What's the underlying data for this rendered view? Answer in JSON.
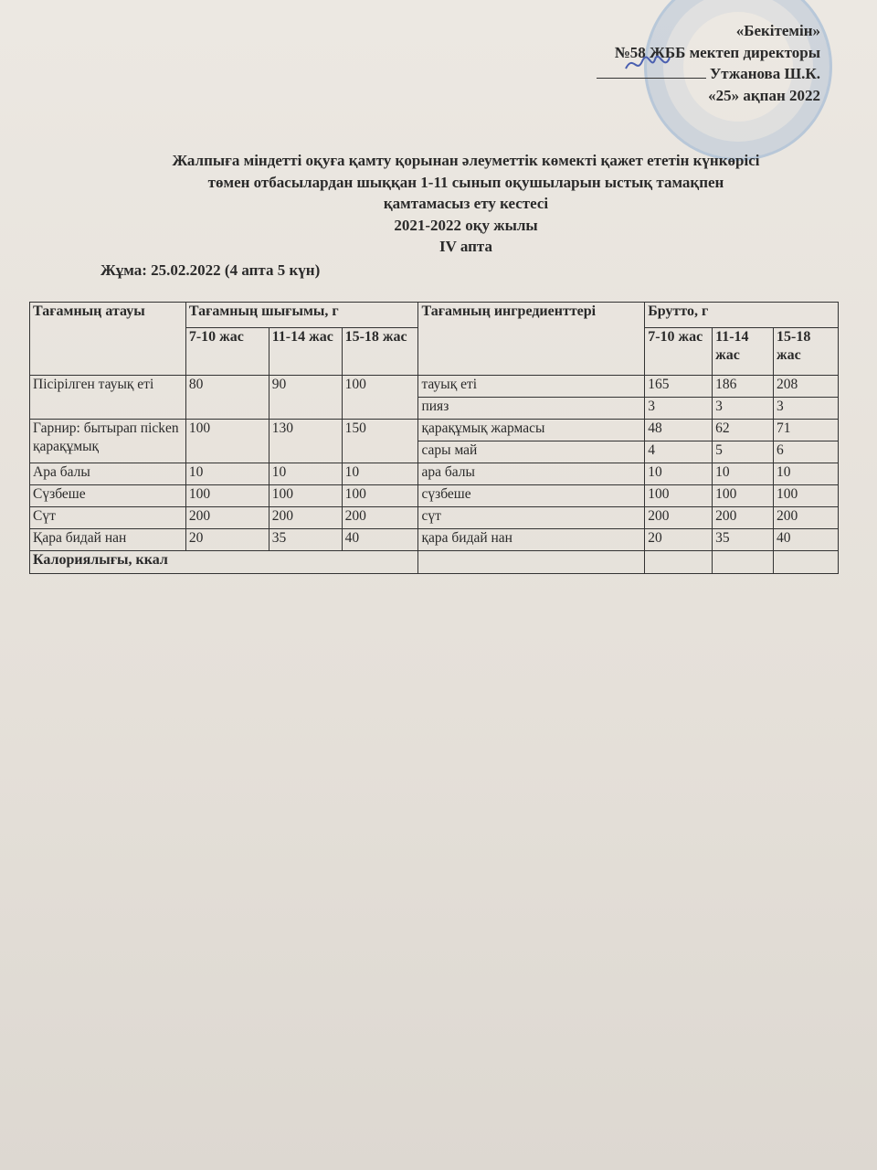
{
  "approval": {
    "line1": "«Бекітемін»",
    "line2": "№58 ЖББ мектеп директоры",
    "line3": "Утжанова Ш.К.",
    "line4": "«25» ақпан 2022"
  },
  "title": {
    "line1": "Жалпыға міндетті оқуға қамту қорынан әлеуметтік көмекті қажет ететін күнкөрісі",
    "line2": "төмен отбасылардан шыққан 1-11 сынып оқушыларын ыстық тамақпен",
    "line3": "қамтамасыз ету кестесі",
    "line4": "2021-2022 оқу жылы",
    "line5": "IV апта"
  },
  "day": "Жұма: 25.02.2022  (4 апта 5 күн)",
  "table": {
    "h_name": "Тағамның атауы",
    "h_yield": "Тағамның шығымы, г",
    "h_ingr": "Тағамның ингредиенттері",
    "h_brutto": "Брутто, г",
    "ages": [
      "7-10 жас",
      "11-14 жас",
      "15-18 жас"
    ],
    "dishes": [
      {
        "name": "Пісірілген тауық еті",
        "yield": [
          "80",
          "90",
          "100"
        ],
        "ingredients": [
          {
            "name": "тауық еті",
            "brutto": [
              "165",
              "186",
              "208"
            ]
          },
          {
            "name": "пияз",
            "brutto": [
              "3",
              "3",
              "3"
            ]
          }
        ]
      },
      {
        "name": "Гарнир: бытырап пісken қарақұмық",
        "yield": [
          "100",
          "130",
          "150"
        ],
        "ingredients": [
          {
            "name": "қарақұмық жармасы",
            "brutto": [
              "48",
              "62",
              "71"
            ]
          },
          {
            "name": "сары май",
            "brutto": [
              "4",
              "5",
              "6"
            ]
          }
        ]
      },
      {
        "name": "Ара балы",
        "yield": [
          "10",
          "10",
          "10"
        ],
        "ingredients": [
          {
            "name": "ара балы",
            "brutto": [
              "10",
              "10",
              "10"
            ]
          }
        ]
      },
      {
        "name": "Сүзбеше",
        "yield": [
          "100",
          "100",
          "100"
        ],
        "ingredients": [
          {
            "name": "сүзбеше",
            "brutto": [
              "100",
              "100",
              "100"
            ]
          }
        ]
      },
      {
        "name": "Сүт",
        "yield": [
          "200",
          "200",
          "200"
        ],
        "ingredients": [
          {
            "name": "сүт",
            "brutto": [
              "200",
              "200",
              "200"
            ]
          }
        ]
      },
      {
        "name": "Қара бидай нан",
        "yield": [
          "20",
          "35",
          "40"
        ],
        "ingredients": [
          {
            "name": "қара бидай нан",
            "brutto": [
              "20",
              "35",
              "40"
            ]
          }
        ]
      }
    ],
    "calories_label": "Калориялығы, ккал"
  }
}
